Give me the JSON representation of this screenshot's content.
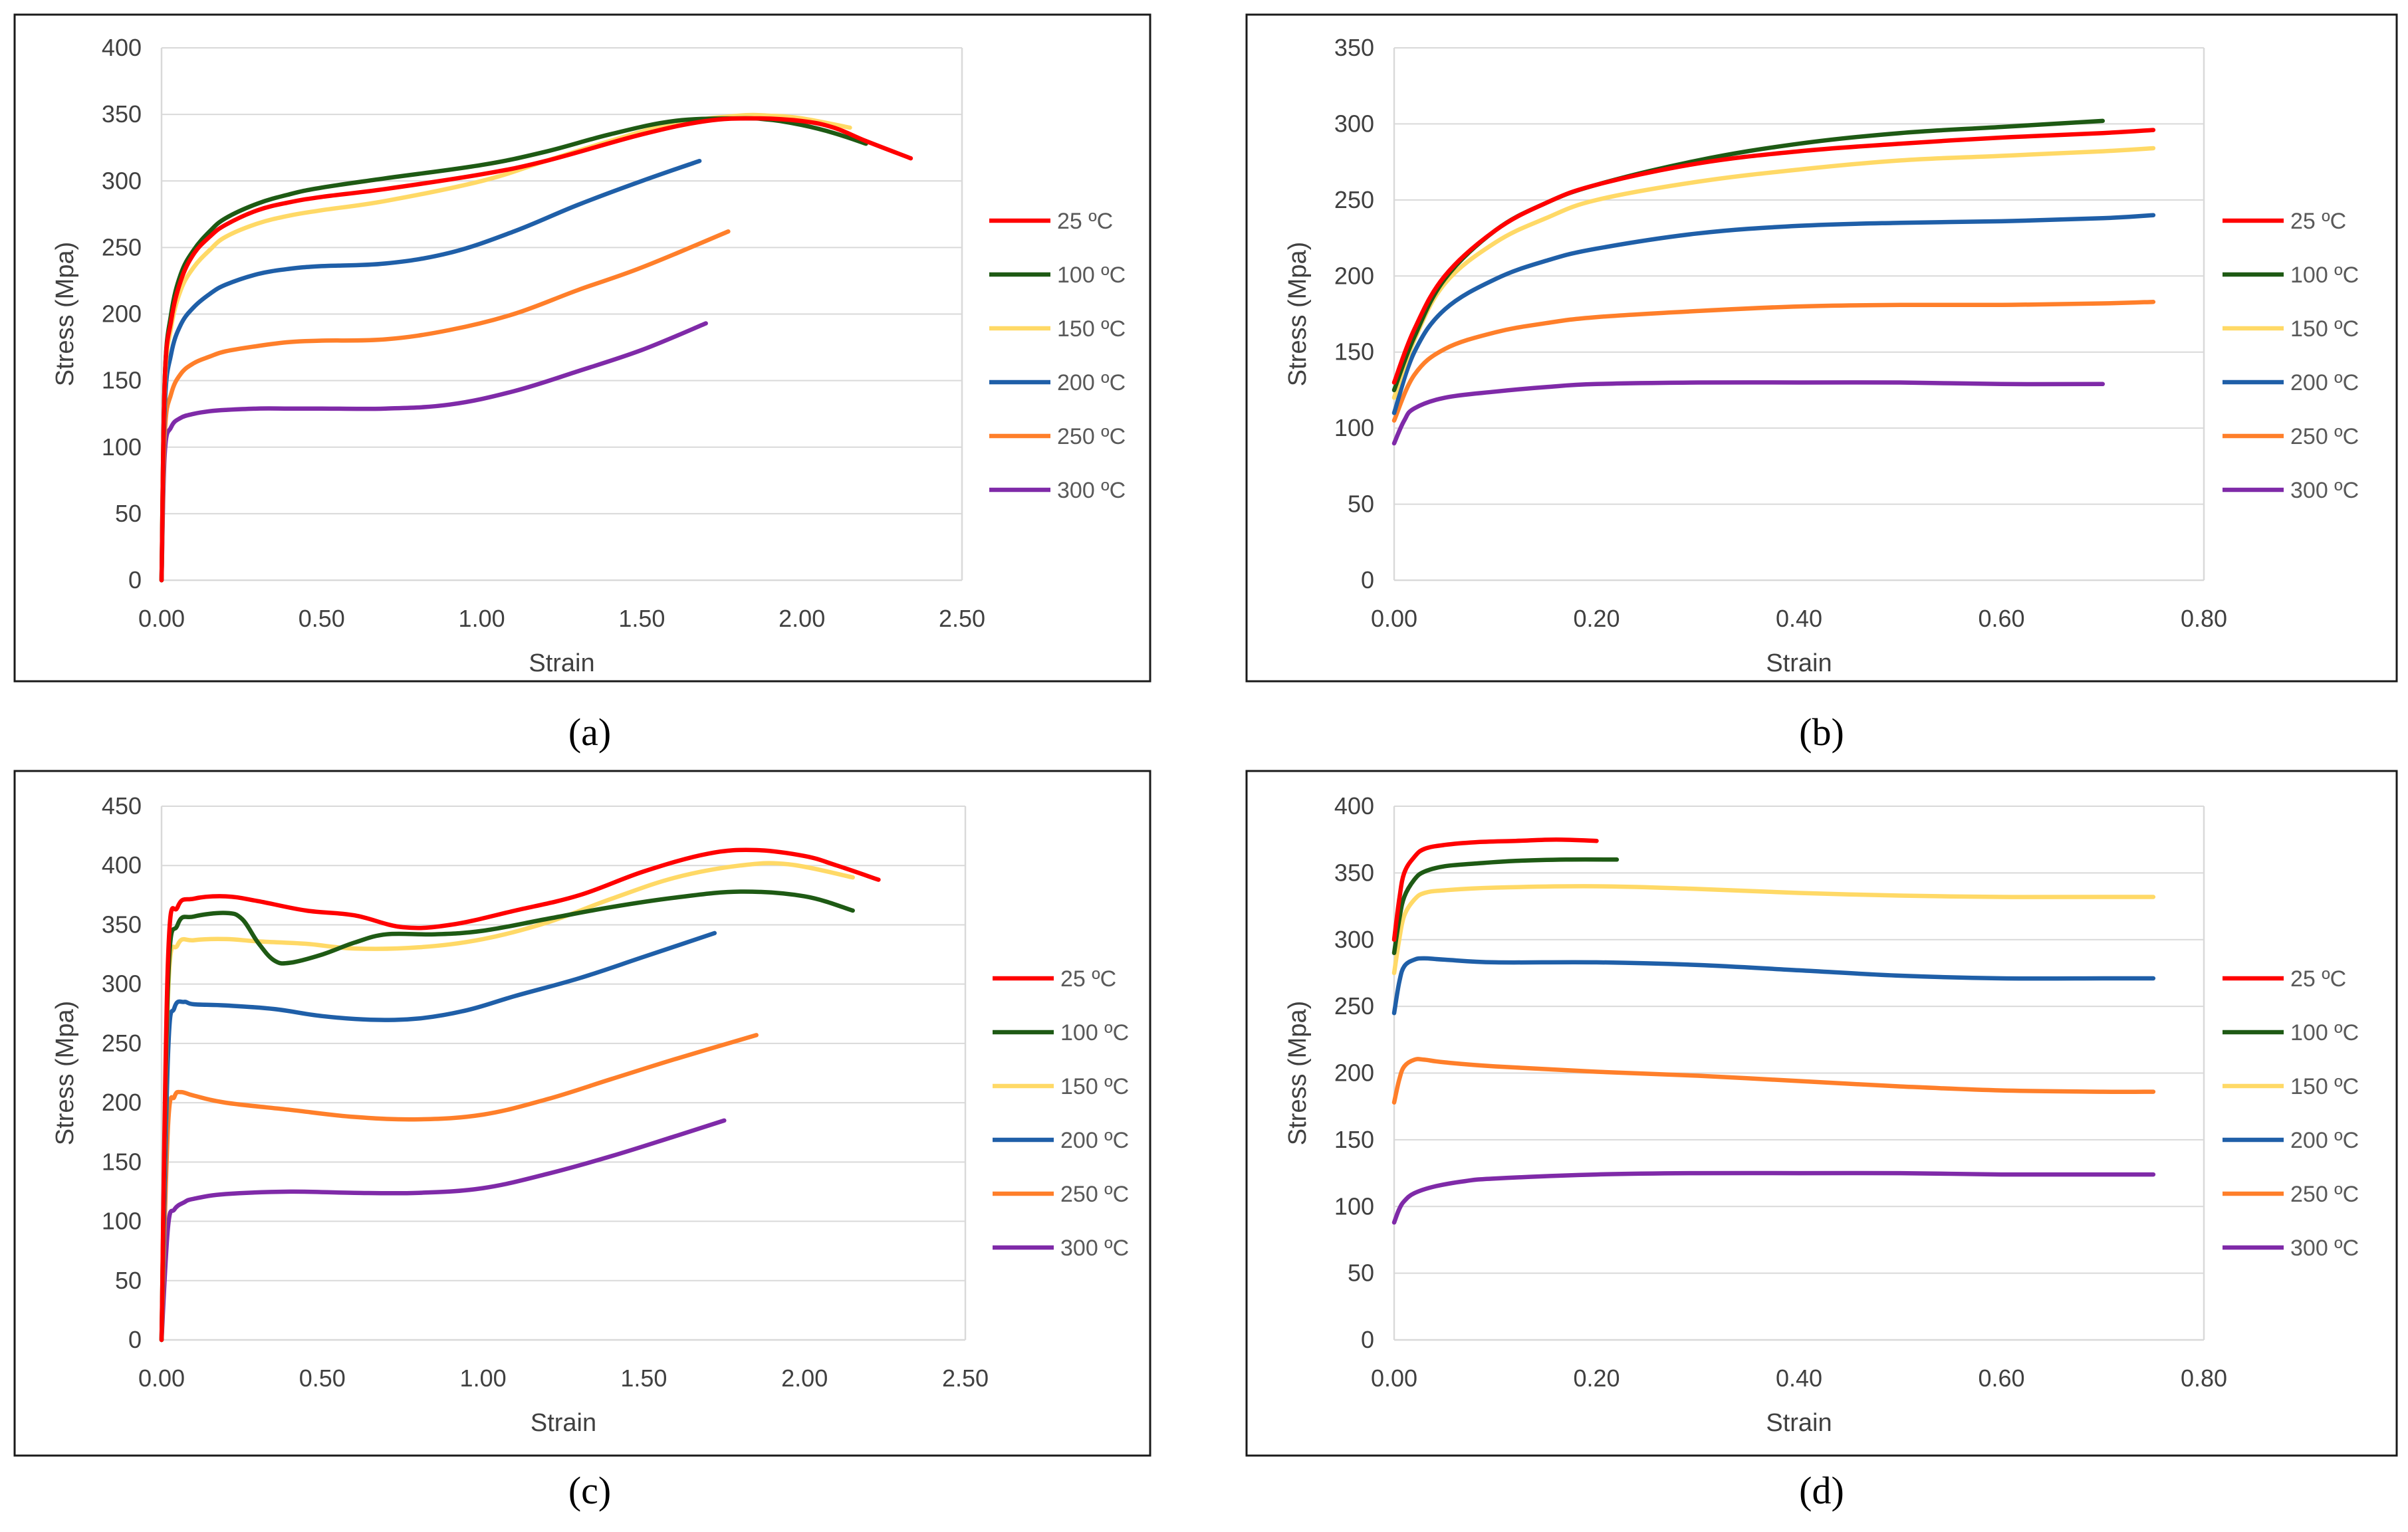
{
  "series_colors": {
    "25 ºC": "#ff0000",
    "100 ºC": "#1e5a14",
    "150 ºC": "#ffd966",
    "200 ºC": "#1f5fa8",
    "250 ºC": "#ff7f2a",
    "300 ºC": "#7f2aa8"
  },
  "chart_data": [
    {
      "panel": "(a)",
      "type": "line",
      "xlabel": "Strain",
      "ylabel": "Stress (Mpa)",
      "xlim": [
        0,
        2.5
      ],
      "ylim": [
        0,
        400
      ],
      "xticks": [
        "0.00",
        "0.50",
        "1.00",
        "1.50",
        "2.00",
        "2.50"
      ],
      "yticks": [
        "0",
        "50",
        "100",
        "150",
        "200",
        "250",
        "300",
        "350",
        "400"
      ],
      "grid": "horizontal",
      "legend": "right",
      "series": [
        {
          "name": "25 ºC",
          "x": [
            0,
            0.01,
            0.03,
            0.06,
            0.1,
            0.15,
            0.2,
            0.3,
            0.4,
            0.5,
            0.7,
            1.0,
            1.2,
            1.5,
            1.7,
            1.85,
            2.0,
            2.1,
            2.2,
            2.34
          ],
          "y": [
            0,
            150,
            195,
            225,
            245,
            258,
            267,
            278,
            284,
            288,
            294,
            305,
            315,
            335,
            345,
            347,
            345,
            340,
            330,
            317
          ]
        },
        {
          "name": "100 ºC",
          "x": [
            0,
            0.01,
            0.03,
            0.06,
            0.1,
            0.15,
            0.2,
            0.3,
            0.4,
            0.5,
            0.7,
            1.0,
            1.2,
            1.4,
            1.6,
            1.8,
            1.9,
            2.0,
            2.1,
            2.2
          ],
          "y": [
            0,
            150,
            200,
            230,
            248,
            262,
            272,
            283,
            290,
            295,
            302,
            312,
            322,
            335,
            345,
            347,
            346,
            342,
            336,
            328
          ]
        },
        {
          "name": "150 ºC",
          "x": [
            0,
            0.01,
            0.03,
            0.06,
            0.1,
            0.15,
            0.2,
            0.3,
            0.4,
            0.5,
            0.7,
            1.0,
            1.2,
            1.4,
            1.6,
            1.8,
            1.9,
            2.0,
            2.15
          ],
          "y": [
            0,
            145,
            190,
            218,
            235,
            248,
            258,
            268,
            274,
            278,
            285,
            300,
            315,
            330,
            343,
            349,
            349,
            347,
            340
          ]
        },
        {
          "name": "200 ºC",
          "x": [
            0,
            0.01,
            0.03,
            0.06,
            0.1,
            0.15,
            0.2,
            0.3,
            0.4,
            0.5,
            0.7,
            0.9,
            1.1,
            1.3,
            1.5,
            1.68
          ],
          "y": [
            0,
            130,
            170,
            192,
            205,
            215,
            222,
            230,
            234,
            236,
            238,
            246,
            262,
            282,
            300,
            315
          ]
        },
        {
          "name": "250 ºC",
          "x": [
            0,
            0.01,
            0.03,
            0.06,
            0.1,
            0.15,
            0.2,
            0.3,
            0.4,
            0.5,
            0.7,
            0.9,
            1.1,
            1.3,
            1.5,
            1.77
          ],
          "y": [
            0,
            110,
            140,
            155,
            163,
            168,
            172,
            176,
            179,
            180,
            181,
            188,
            200,
            218,
            235,
            262
          ]
        },
        {
          "name": "300 ºC",
          "x": [
            0,
            0.01,
            0.03,
            0.06,
            0.1,
            0.15,
            0.2,
            0.3,
            0.4,
            0.5,
            0.7,
            0.9,
            1.1,
            1.3,
            1.5,
            1.7
          ],
          "y": [
            0,
            95,
            115,
            122,
            125,
            127,
            128,
            129,
            129,
            129,
            129,
            132,
            142,
            157,
            173,
            193
          ]
        }
      ]
    },
    {
      "panel": "(b)",
      "type": "line",
      "xlabel": "Strain",
      "ylabel": "Stress (Mpa)",
      "xlim": [
        0,
        0.8
      ],
      "ylim": [
        0,
        350
      ],
      "xticks": [
        "0.00",
        "0.20",
        "0.40",
        "0.60",
        "0.80"
      ],
      "yticks": [
        "0",
        "50",
        "100",
        "150",
        "200",
        "250",
        "300",
        "350"
      ],
      "grid": "horizontal",
      "legend": "right",
      "series": [
        {
          "name": "25 ºC",
          "x": [
            0,
            0.02,
            0.05,
            0.1,
            0.15,
            0.2,
            0.3,
            0.4,
            0.5,
            0.6,
            0.7,
            0.75
          ],
          "y": [
            130,
            165,
            200,
            230,
            248,
            260,
            274,
            282,
            287,
            291,
            294,
            296
          ]
        },
        {
          "name": "100 ºC",
          "x": [
            0,
            0.02,
            0.05,
            0.1,
            0.15,
            0.2,
            0.3,
            0.4,
            0.5,
            0.6,
            0.7
          ],
          "y": [
            125,
            160,
            198,
            230,
            248,
            260,
            276,
            287,
            294,
            298,
            302
          ]
        },
        {
          "name": "150 ºC",
          "x": [
            0,
            0.02,
            0.05,
            0.1,
            0.15,
            0.2,
            0.3,
            0.4,
            0.5,
            0.6,
            0.7,
            0.75
          ],
          "y": [
            120,
            158,
            195,
            222,
            238,
            250,
            262,
            270,
            276,
            279,
            282,
            284
          ]
        },
        {
          "name": "200 ºC",
          "x": [
            0,
            0.02,
            0.05,
            0.1,
            0.15,
            0.2,
            0.3,
            0.4,
            0.5,
            0.6,
            0.7,
            0.75
          ],
          "y": [
            110,
            150,
            178,
            198,
            210,
            218,
            228,
            233,
            235,
            236,
            238,
            240
          ]
        },
        {
          "name": "250 ºC",
          "x": [
            0,
            0.02,
            0.05,
            0.1,
            0.15,
            0.2,
            0.3,
            0.4,
            0.5,
            0.6,
            0.7,
            0.75
          ],
          "y": [
            105,
            135,
            152,
            163,
            169,
            173,
            177,
            180,
            181,
            181,
            182,
            183
          ]
        },
        {
          "name": "300 ºC",
          "x": [
            0,
            0.01,
            0.02,
            0.05,
            0.1,
            0.15,
            0.2,
            0.3,
            0.4,
            0.5,
            0.6,
            0.7
          ],
          "y": [
            90,
            105,
            113,
            120,
            124,
            127,
            129,
            130,
            130,
            130,
            129,
            129
          ]
        }
      ]
    },
    {
      "panel": "(c)",
      "type": "line",
      "xlabel": "Strain",
      "ylabel": "Stress (Mpa)",
      "xlim": [
        0,
        2.5
      ],
      "ylim": [
        0,
        450
      ],
      "xticks": [
        "0.00",
        "0.50",
        "1.00",
        "1.50",
        "2.00",
        "2.50"
      ],
      "yticks": [
        "0",
        "50",
        "100",
        "150",
        "200",
        "250",
        "300",
        "350",
        "400",
        "450"
      ],
      "grid": "horizontal",
      "legend": "right",
      "series": [
        {
          "name": "25 ºC",
          "x": [
            0,
            0.02,
            0.05,
            0.1,
            0.2,
            0.3,
            0.45,
            0.6,
            0.75,
            0.9,
            1.1,
            1.3,
            1.5,
            1.7,
            1.85,
            2.0,
            2.1,
            2.23
          ],
          "y": [
            0,
            320,
            365,
            372,
            374,
            370,
            362,
            358,
            348,
            350,
            362,
            375,
            395,
            410,
            413,
            408,
            400,
            388
          ]
        },
        {
          "name": "100 ºC",
          "x": [
            0,
            0.02,
            0.05,
            0.1,
            0.2,
            0.25,
            0.3,
            0.35,
            0.4,
            0.5,
            0.6,
            0.7,
            0.85,
            1.0,
            1.2,
            1.4,
            1.6,
            1.8,
            2.0,
            2.15
          ],
          "y": [
            0,
            300,
            350,
            357,
            360,
            355,
            335,
            320,
            318,
            325,
            335,
            342,
            342,
            345,
            355,
            365,
            373,
            378,
            374,
            362
          ]
        },
        {
          "name": "150 ºC",
          "x": [
            0,
            0.02,
            0.05,
            0.1,
            0.2,
            0.3,
            0.45,
            0.6,
            0.8,
            1.0,
            1.2,
            1.4,
            1.6,
            1.8,
            1.95,
            2.15
          ],
          "y": [
            0,
            290,
            333,
            337,
            338,
            336,
            334,
            330,
            331,
            338,
            352,
            372,
            390,
            400,
            401,
            390
          ]
        },
        {
          "name": "200 ºC",
          "x": [
            0,
            0.02,
            0.04,
            0.07,
            0.1,
            0.2,
            0.35,
            0.5,
            0.65,
            0.8,
            0.95,
            1.1,
            1.3,
            1.5,
            1.72
          ],
          "y": [
            0,
            240,
            280,
            285,
            283,
            282,
            279,
            273,
            270,
            271,
            278,
            290,
            305,
            323,
            343
          ]
        },
        {
          "name": "250 ºC",
          "x": [
            0,
            0.02,
            0.04,
            0.06,
            0.1,
            0.2,
            0.4,
            0.6,
            0.8,
            1.0,
            1.2,
            1.4,
            1.6,
            1.85
          ],
          "y": [
            0,
            180,
            205,
            209,
            206,
            200,
            194,
            188,
            186,
            190,
            203,
            220,
            237,
            257
          ]
        },
        {
          "name": "300 ºC",
          "x": [
            0,
            0.02,
            0.04,
            0.07,
            0.1,
            0.2,
            0.4,
            0.6,
            0.8,
            1.0,
            1.2,
            1.4,
            1.6,
            1.75
          ],
          "y": [
            0,
            95,
            110,
            116,
            119,
            123,
            125,
            124,
            124,
            128,
            140,
            155,
            172,
            185
          ]
        }
      ]
    },
    {
      "panel": "(d)",
      "type": "line",
      "xlabel": "Strain",
      "ylabel": "Stress (Mpa)",
      "xlim": [
        0,
        0.8
      ],
      "ylim": [
        0,
        400
      ],
      "xticks": [
        "0.00",
        "0.20",
        "0.40",
        "0.60",
        "0.80"
      ],
      "yticks": [
        "0",
        "50",
        "100",
        "150",
        "200",
        "250",
        "300",
        "350",
        "400"
      ],
      "grid": "horizontal",
      "legend": "right",
      "series": [
        {
          "name": "25 ºC",
          "x": [
            0,
            0.005,
            0.01,
            0.02,
            0.03,
            0.05,
            0.08,
            0.12,
            0.16,
            0.2
          ],
          "y": [
            300,
            330,
            350,
            362,
            368,
            371,
            373,
            374,
            375,
            374
          ]
        },
        {
          "name": "100 ºC",
          "x": [
            0,
            0.005,
            0.01,
            0.02,
            0.03,
            0.05,
            0.08,
            0.12,
            0.17,
            0.22
          ],
          "y": [
            290,
            315,
            332,
            345,
            351,
            355,
            357,
            359,
            360,
            360
          ]
        },
        {
          "name": "150 ºC",
          "x": [
            0,
            0.005,
            0.01,
            0.02,
            0.03,
            0.05,
            0.1,
            0.2,
            0.3,
            0.4,
            0.5,
            0.6,
            0.7,
            0.75
          ],
          "y": [
            275,
            300,
            318,
            330,
            335,
            337,
            339,
            340,
            338,
            335,
            333,
            332,
            332,
            332
          ]
        },
        {
          "name": "200 ºC",
          "x": [
            0,
            0.005,
            0.01,
            0.02,
            0.03,
            0.05,
            0.1,
            0.2,
            0.3,
            0.4,
            0.5,
            0.6,
            0.7,
            0.75
          ],
          "y": [
            245,
            268,
            280,
            285,
            286,
            285,
            283,
            283,
            281,
            277,
            273,
            271,
            271,
            271
          ]
        },
        {
          "name": "250 ºC",
          "x": [
            0,
            0.005,
            0.01,
            0.02,
            0.03,
            0.05,
            0.1,
            0.2,
            0.3,
            0.4,
            0.5,
            0.6,
            0.7,
            0.75
          ],
          "y": [
            178,
            195,
            205,
            210,
            210,
            208,
            205,
            201,
            198,
            194,
            190,
            187,
            186,
            186
          ]
        },
        {
          "name": "300 ºC",
          "x": [
            0,
            0.005,
            0.01,
            0.02,
            0.04,
            0.07,
            0.1,
            0.2,
            0.3,
            0.4,
            0.5,
            0.6,
            0.7,
            0.75
          ],
          "y": [
            88,
            98,
            104,
            110,
            115,
            119,
            121,
            124,
            125,
            125,
            125,
            124,
            124,
            124
          ]
        }
      ]
    }
  ]
}
